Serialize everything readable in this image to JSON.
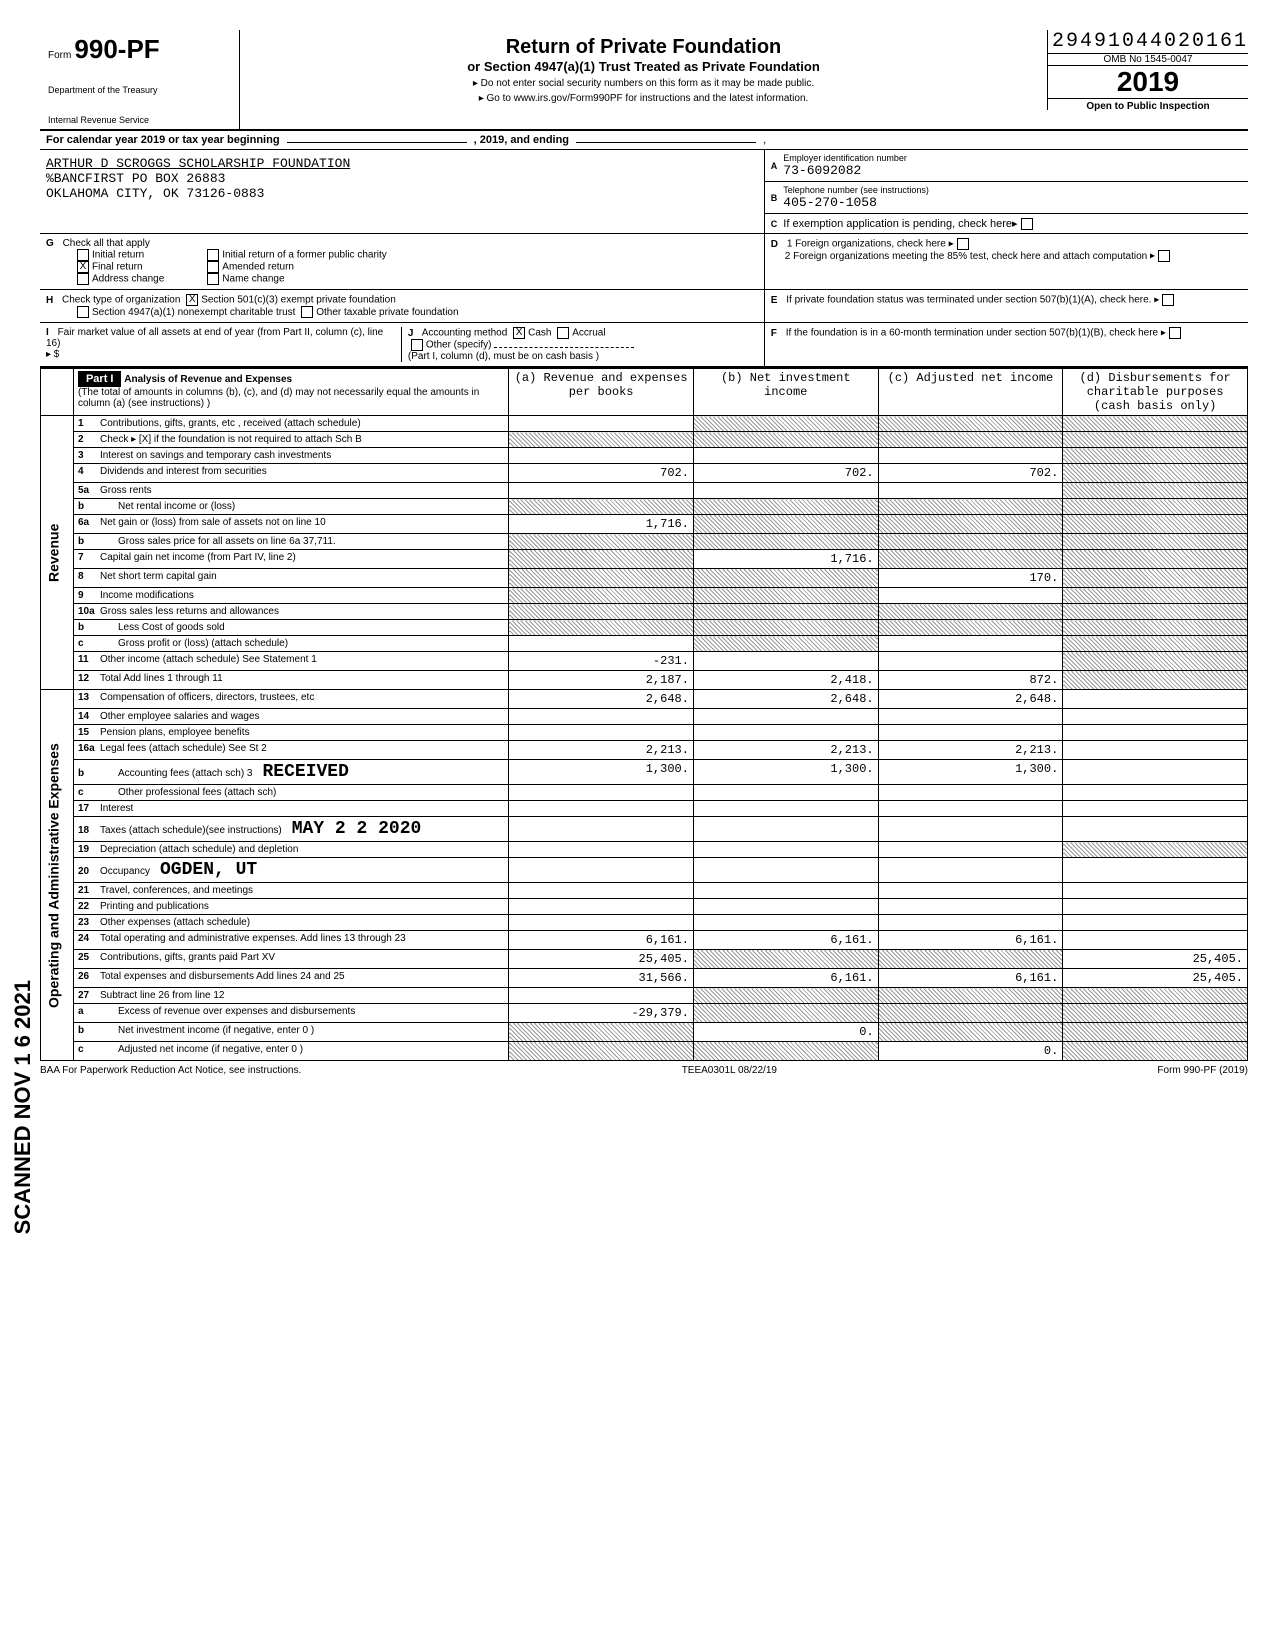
{
  "meta": {
    "dln": "29491044020161",
    "omb": "OMB No 1545-0047",
    "form_prefix": "Form",
    "form_number": "990-PF",
    "year": "2019",
    "title": "Return of Private Foundation",
    "subtitle": "or Section 4947(a)(1) Trust Treated as Private Foundation",
    "warn1": "▸ Do not enter social security numbers on this form as it may be made public.",
    "warn2": "▸ Go to www.irs.gov/Form990PF for instructions and the latest information.",
    "dept1": "Department of the Treasury",
    "dept2": "Internal Revenue Service",
    "otpi": "Open to Public Inspection"
  },
  "period": {
    "label": "For calendar year 2019 or tax year beginning",
    "mid": ", 2019, and ending",
    "end": ","
  },
  "org": {
    "name": "ARTHUR D SCROGGS SCHOLARSHIP FOUNDATION",
    "addr1": "%BANCFIRST PO BOX 26883",
    "addr2": "OKLAHOMA CITY, OK 73126-0883"
  },
  "ein": {
    "label": "Employer identification number",
    "value": "73-6092082",
    "letter": "A"
  },
  "phone": {
    "label": "Telephone number (see instructions)",
    "value": "405-270-1058",
    "letter": "B"
  },
  "sectionC": {
    "letter": "C",
    "text": "If exemption application is pending, check here"
  },
  "sectionD": {
    "letter": "D",
    "d1": "1 Foreign organizations, check here",
    "d2": "2 Foreign organizations meeting the 85% test, check here and attach computation"
  },
  "sectionE": {
    "letter": "E",
    "text": "If private foundation status was terminated under section 507(b)(1)(A), check here."
  },
  "sectionF": {
    "letter": "F",
    "text": "If the foundation is in a 60-month termination under section 507(b)(1)(B), check here"
  },
  "checkG": {
    "letter": "G",
    "label": "Check all that apply",
    "opts": {
      "initial": "Initial return",
      "final": "Final return",
      "addr": "Address change",
      "initformer": "Initial return of a former public charity",
      "amended": "Amended return",
      "namechg": "Name change"
    },
    "final_checked": true
  },
  "checkH": {
    "letter": "H",
    "label": "Check type of organization",
    "opt1": "Section 501(c)(3) exempt private foundation",
    "opt1_checked": true,
    "opt2": "Section 4947(a)(1) nonexempt charitable trust",
    "opt3": "Other taxable private foundation"
  },
  "lineI": {
    "letter": "I",
    "label": "Fair market value of all assets at end of year (from Part II, column (c), line 16)",
    "prefix": "▸ $"
  },
  "lineJ": {
    "letter": "J",
    "label": "Accounting method",
    "cash": "Cash",
    "cash_checked": true,
    "accrual": "Accrual",
    "other": "Other (specify)",
    "note": "(Part I, column (d), must be on cash basis )"
  },
  "part1": {
    "tag": "Part I",
    "title": "Analysis of Revenue and Expenses",
    "note": "(The total of amounts in columns (b), (c), and (d) may not necessarily equal the amounts in column (a) (see instructions) )"
  },
  "cols": {
    "a": "(a) Revenue and expenses per books",
    "b": "(b) Net investment income",
    "c": "(c) Adjusted net income",
    "d": "(d) Disbursements for charitable purposes (cash basis only)"
  },
  "side_labels": {
    "revenue": "Revenue",
    "expenses": "Operating and Administrative Expenses"
  },
  "stamps": {
    "received": "RECEIVED",
    "date": "MAY 2 2 2020",
    "ogden": "OGDEN, UT",
    "scanned": "SCANNED NOV 1 6 2021"
  },
  "rows": [
    {
      "n": "1",
      "desc": "Contributions, gifts, grants, etc , received (attach schedule)",
      "a": "",
      "b": "sh",
      "c": "sh",
      "d": "sh"
    },
    {
      "n": "2",
      "desc": "Check ▸ [X] if the foundation is not required to attach Sch B",
      "a": "sh",
      "b": "sh",
      "c": "sh",
      "d": "sh"
    },
    {
      "n": "3",
      "desc": "Interest on savings and temporary cash investments",
      "a": "",
      "b": "",
      "c": "",
      "d": "sh"
    },
    {
      "n": "4",
      "desc": "Dividends and interest from securities",
      "a": "702.",
      "b": "702.",
      "c": "702.",
      "d": "sh"
    },
    {
      "n": "5a",
      "desc": "Gross rents",
      "a": "",
      "b": "",
      "c": "",
      "d": "sh"
    },
    {
      "n": "b",
      "desc": "Net rental income or (loss)",
      "sub": true,
      "a": "sh",
      "b": "sh",
      "c": "sh",
      "d": "sh"
    },
    {
      "n": "6a",
      "desc": "Net gain or (loss) from sale of assets not on line 10",
      "a": "1,716.",
      "b": "sh",
      "c": "sh",
      "d": "sh"
    },
    {
      "n": "b",
      "desc": "Gross sales price for all assets on line 6a       37,711.",
      "sub": true,
      "a": "sh",
      "b": "sh",
      "c": "sh",
      "d": "sh"
    },
    {
      "n": "7",
      "desc": "Capital gain net income (from Part IV, line 2)",
      "a": "sh",
      "b": "1,716.",
      "c": "sh",
      "d": "sh"
    },
    {
      "n": "8",
      "desc": "Net short term capital gain",
      "a": "sh",
      "b": "sh",
      "c": "170.",
      "d": "sh"
    },
    {
      "n": "9",
      "desc": "Income modifications",
      "a": "sh",
      "b": "sh",
      "c": "",
      "d": "sh"
    },
    {
      "n": "10a",
      "desc": "Gross sales less returns and allowances",
      "a": "sh",
      "b": "sh",
      "c": "sh",
      "d": "sh"
    },
    {
      "n": "b",
      "desc": "Less Cost of goods sold",
      "sub": true,
      "a": "sh",
      "b": "sh",
      "c": "sh",
      "d": "sh"
    },
    {
      "n": "c",
      "desc": "Gross profit or (loss) (attach schedule)",
      "sub": true,
      "a": "",
      "b": "sh",
      "c": "",
      "d": "sh"
    },
    {
      "n": "11",
      "desc": "Other income (attach schedule)           See Statement 1",
      "a": "-231.",
      "b": "",
      "c": "",
      "d": "sh"
    },
    {
      "n": "12",
      "desc": "Total Add lines 1 through 11",
      "a": "2,187.",
      "b": "2,418.",
      "c": "872.",
      "d": "sh"
    },
    {
      "n": "13",
      "desc": "Compensation of officers, directors, trustees, etc",
      "a": "2,648.",
      "b": "2,648.",
      "c": "2,648.",
      "d": ""
    },
    {
      "n": "14",
      "desc": "Other employee salaries and wages",
      "a": "",
      "b": "",
      "c": "",
      "d": ""
    },
    {
      "n": "15",
      "desc": "Pension plans, employee benefits",
      "a": "",
      "b": "",
      "c": "",
      "d": ""
    },
    {
      "n": "16a",
      "desc": "Legal fees (attach schedule)     See St 2",
      "a": "2,213.",
      "b": "2,213.",
      "c": "2,213.",
      "d": ""
    },
    {
      "n": "b",
      "desc": "Accounting fees (attach sch)            3",
      "sub": true,
      "a": "1,300.",
      "b": "1,300.",
      "c": "1,300.",
      "d": ""
    },
    {
      "n": "c",
      "desc": "Other professional fees (attach sch)",
      "sub": true,
      "a": "",
      "b": "",
      "c": "",
      "d": ""
    },
    {
      "n": "17",
      "desc": "Interest",
      "a": "",
      "b": "",
      "c": "",
      "d": ""
    },
    {
      "n": "18",
      "desc": "Taxes (attach schedule)(see instructions)",
      "a": "",
      "b": "",
      "c": "",
      "d": ""
    },
    {
      "n": "19",
      "desc": "Depreciation (attach schedule) and depletion",
      "a": "",
      "b": "",
      "c": "",
      "d": "sh"
    },
    {
      "n": "20",
      "desc": "Occupancy",
      "a": "",
      "b": "",
      "c": "",
      "d": ""
    },
    {
      "n": "21",
      "desc": "Travel, conferences, and meetings",
      "a": "",
      "b": "",
      "c": "",
      "d": ""
    },
    {
      "n": "22",
      "desc": "Printing and publications",
      "a": "",
      "b": "",
      "c": "",
      "d": ""
    },
    {
      "n": "23",
      "desc": "Other expenses (attach schedule)",
      "a": "",
      "b": "",
      "c": "",
      "d": ""
    },
    {
      "n": "24",
      "desc": "Total operating and administrative expenses. Add lines 13 through 23",
      "a": "6,161.",
      "b": "6,161.",
      "c": "6,161.",
      "d": ""
    },
    {
      "n": "25",
      "desc": "Contributions, gifts, grants paid       Part XV",
      "a": "25,405.",
      "b": "sh",
      "c": "sh",
      "d": "25,405."
    },
    {
      "n": "26",
      "desc": "Total expenses and disbursements Add lines 24 and 25",
      "a": "31,566.",
      "b": "6,161.",
      "c": "6,161.",
      "d": "25,405."
    },
    {
      "n": "27",
      "desc": "Subtract line 26 from line 12",
      "a": "",
      "b": "sh",
      "c": "sh",
      "d": "sh"
    },
    {
      "n": "a",
      "desc": "Excess of revenue over expenses and disbursements",
      "sub": true,
      "a": "-29,379.",
      "b": "sh",
      "c": "sh",
      "d": "sh"
    },
    {
      "n": "b",
      "desc": "Net investment income (if negative, enter 0 )",
      "sub": true,
      "a": "sh",
      "b": "0.",
      "c": "sh",
      "d": "sh"
    },
    {
      "n": "c",
      "desc": "Adjusted net income (if negative, enter 0 )",
      "sub": true,
      "a": "sh",
      "b": "sh",
      "c": "0.",
      "d": "sh"
    }
  ],
  "footer": {
    "baa": "BAA For Paperwork Reduction Act Notice, see instructions.",
    "teea": "TEEA0301L 08/22/19",
    "form": "Form 990-PF (2019)"
  }
}
